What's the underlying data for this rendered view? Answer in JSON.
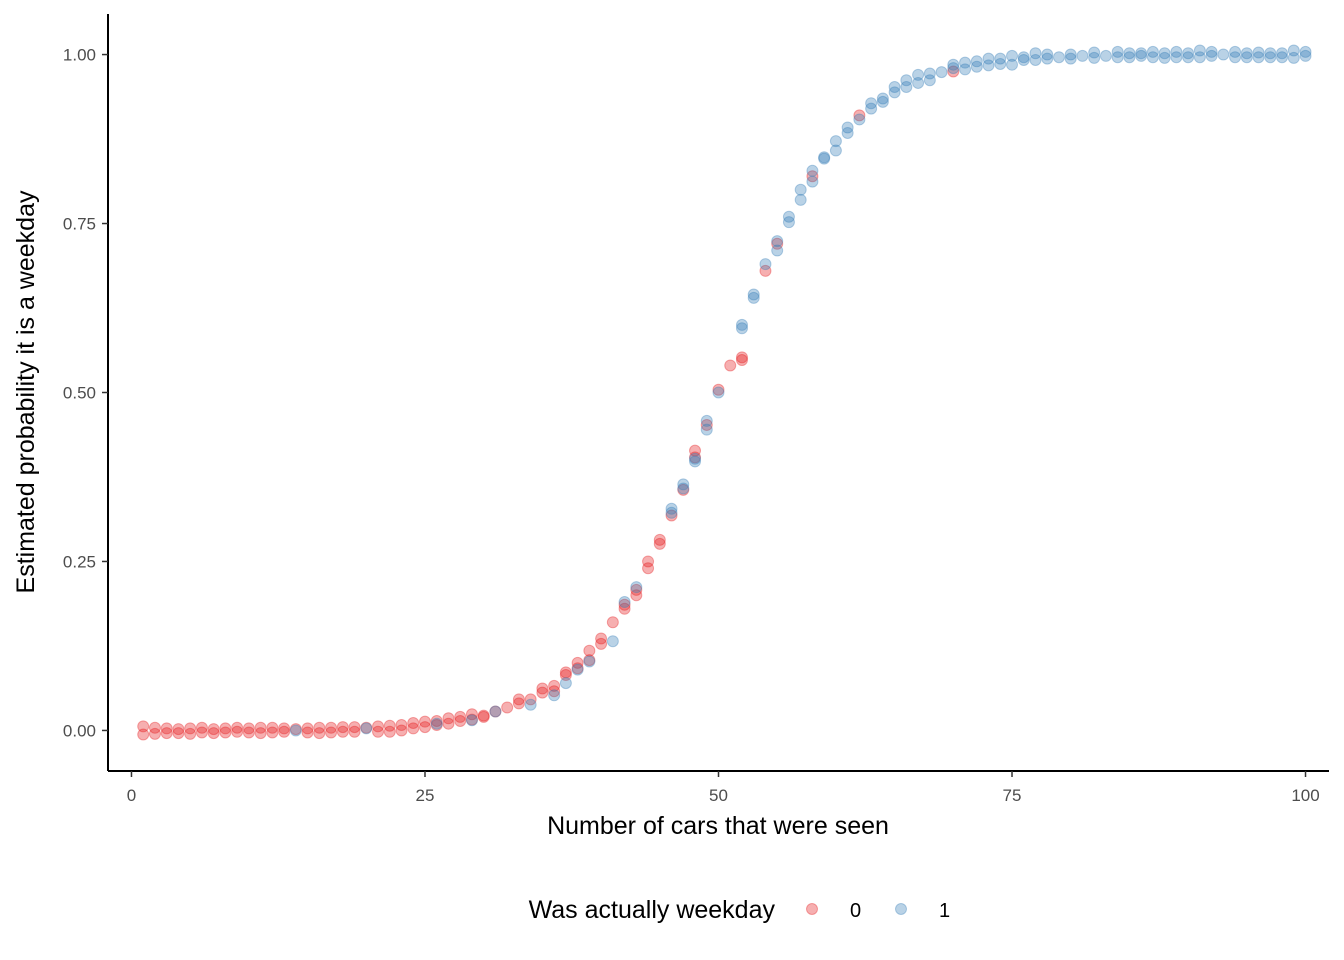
{
  "chart_data": {
    "type": "scatter",
    "title": "",
    "xlabel": "Number of cars that were seen",
    "ylabel": "Estimated probability it is a weekday",
    "xlim": [
      -2,
      102
    ],
    "ylim": [
      -0.06,
      1.06
    ],
    "xticks": [
      0,
      25,
      50,
      75,
      100
    ],
    "xtick_labels": [
      "0",
      "25",
      "50",
      "75",
      "100"
    ],
    "yticks": [
      0,
      0.25,
      0.5,
      0.75,
      1
    ],
    "ytick_labels": [
      "0.00",
      "0.25",
      "0.50",
      "0.75",
      "1.00"
    ],
    "grid": false,
    "legend": {
      "title": "Was actually weekday",
      "position": "bottom",
      "entries": [
        {
          "label": "0",
          "color": "#E41A1C"
        },
        {
          "label": "1",
          "color": "#377EB8"
        }
      ]
    },
    "point_alpha": 0.35,
    "curve": "logistic",
    "logistic_midpoint": 49.5,
    "logistic_slope": 0.18,
    "series": [
      {
        "name": "0",
        "color": "#E41A1C",
        "x": [
          1,
          1,
          2,
          2,
          3,
          3,
          4,
          4,
          5,
          5,
          6,
          6,
          7,
          7,
          8,
          8,
          9,
          9,
          10,
          10,
          11,
          11,
          12,
          12,
          13,
          13,
          14,
          15,
          15,
          16,
          16,
          17,
          17,
          18,
          18,
          19,
          19,
          20,
          21,
          21,
          22,
          22,
          23,
          23,
          24,
          24,
          25,
          25,
          26,
          26,
          27,
          27,
          28,
          28,
          29,
          29,
          30,
          30,
          31,
          32,
          33,
          33,
          34,
          35,
          35,
          36,
          36,
          37,
          37,
          38,
          38,
          39,
          39,
          40,
          40,
          41,
          42,
          42,
          43,
          43,
          44,
          44,
          45,
          45,
          46,
          47,
          48,
          48,
          49,
          50,
          51,
          52,
          52,
          54,
          55,
          58,
          62,
          70
        ],
        "y": [
          0.006,
          -0.006,
          0.004,
          -0.005,
          0.003,
          -0.004,
          0.002,
          -0.004,
          0.003,
          -0.005,
          0.004,
          -0.003,
          0.002,
          -0.004,
          0.003,
          -0.003,
          0.004,
          -0.002,
          0.003,
          -0.003,
          0.004,
          -0.004,
          0.004,
          -0.003,
          0.003,
          -0.002,
          0.002,
          0.003,
          -0.003,
          0.004,
          -0.004,
          0.004,
          -0.003,
          0.005,
          -0.002,
          0.005,
          -0.002,
          0.004,
          0.006,
          -0.002,
          0.007,
          -0.002,
          0.008,
          0.0,
          0.011,
          0.003,
          0.013,
          0.005,
          0.014,
          0.008,
          0.018,
          0.01,
          0.02,
          0.014,
          0.024,
          0.016,
          0.022,
          0.02,
          0.028,
          0.034,
          0.04,
          0.046,
          0.046,
          0.056,
          0.062,
          0.066,
          0.058,
          0.086,
          0.082,
          0.1,
          0.092,
          0.118,
          0.104,
          0.136,
          0.128,
          0.16,
          0.18,
          0.186,
          0.2,
          0.208,
          0.25,
          0.24,
          0.276,
          0.282,
          0.318,
          0.356,
          0.404,
          0.414,
          0.452,
          0.504,
          0.54,
          0.548,
          0.552,
          0.68,
          0.72,
          0.82,
          0.91,
          0.975
        ]
      },
      {
        "name": "1",
        "color": "#377EB8",
        "x": [
          14,
          20,
          26,
          29,
          31,
          34,
          36,
          37,
          38,
          39,
          41,
          42,
          43,
          46,
          46,
          47,
          47,
          48,
          48,
          49,
          49,
          50,
          52,
          52,
          53,
          53,
          54,
          55,
          55,
          56,
          56,
          57,
          57,
          58,
          58,
          59,
          59,
          60,
          60,
          61,
          61,
          62,
          63,
          63,
          64,
          64,
          65,
          65,
          66,
          66,
          67,
          67,
          68,
          68,
          69,
          70,
          70,
          71,
          71,
          72,
          72,
          73,
          73,
          74,
          74,
          75,
          75,
          76,
          76,
          77,
          77,
          78,
          78,
          79,
          80,
          80,
          81,
          82,
          82,
          83,
          84,
          84,
          85,
          85,
          86,
          86,
          87,
          87,
          88,
          88,
          89,
          89,
          90,
          90,
          91,
          91,
          92,
          92,
          93,
          94,
          94,
          95,
          95,
          96,
          96,
          97,
          97,
          98,
          98,
          99,
          99,
          100,
          100
        ],
        "y": [
          0.0,
          0.003,
          0.01,
          0.015,
          0.028,
          0.038,
          0.052,
          0.07,
          0.09,
          0.102,
          0.132,
          0.19,
          0.212,
          0.322,
          0.328,
          0.364,
          0.358,
          0.398,
          0.402,
          0.445,
          0.458,
          0.5,
          0.595,
          0.6,
          0.64,
          0.645,
          0.69,
          0.71,
          0.724,
          0.752,
          0.76,
          0.785,
          0.8,
          0.812,
          0.828,
          0.846,
          0.848,
          0.858,
          0.872,
          0.884,
          0.892,
          0.904,
          0.92,
          0.928,
          0.93,
          0.935,
          0.944,
          0.952,
          0.952,
          0.962,
          0.958,
          0.97,
          0.962,
          0.972,
          0.974,
          0.98,
          0.985,
          0.978,
          0.988,
          0.982,
          0.99,
          0.984,
          0.994,
          0.986,
          0.994,
          0.985,
          0.998,
          0.992,
          0.996,
          0.992,
          1.002,
          0.994,
          1.0,
          0.996,
          0.994,
          1.0,
          0.998,
          0.995,
          1.003,
          0.998,
          0.996,
          1.004,
          0.996,
          1.002,
          0.998,
          1.002,
          0.996,
          1.004,
          0.995,
          1.002,
          0.996,
          1.004,
          0.996,
          1.002,
          0.996,
          1.006,
          0.998,
          1.004,
          1.0,
          0.996,
          1.004,
          0.996,
          1.002,
          0.996,
          1.003,
          0.996,
          1.002,
          0.996,
          1.002,
          0.995,
          1.006,
          0.998,
          1.004
        ]
      }
    ]
  }
}
